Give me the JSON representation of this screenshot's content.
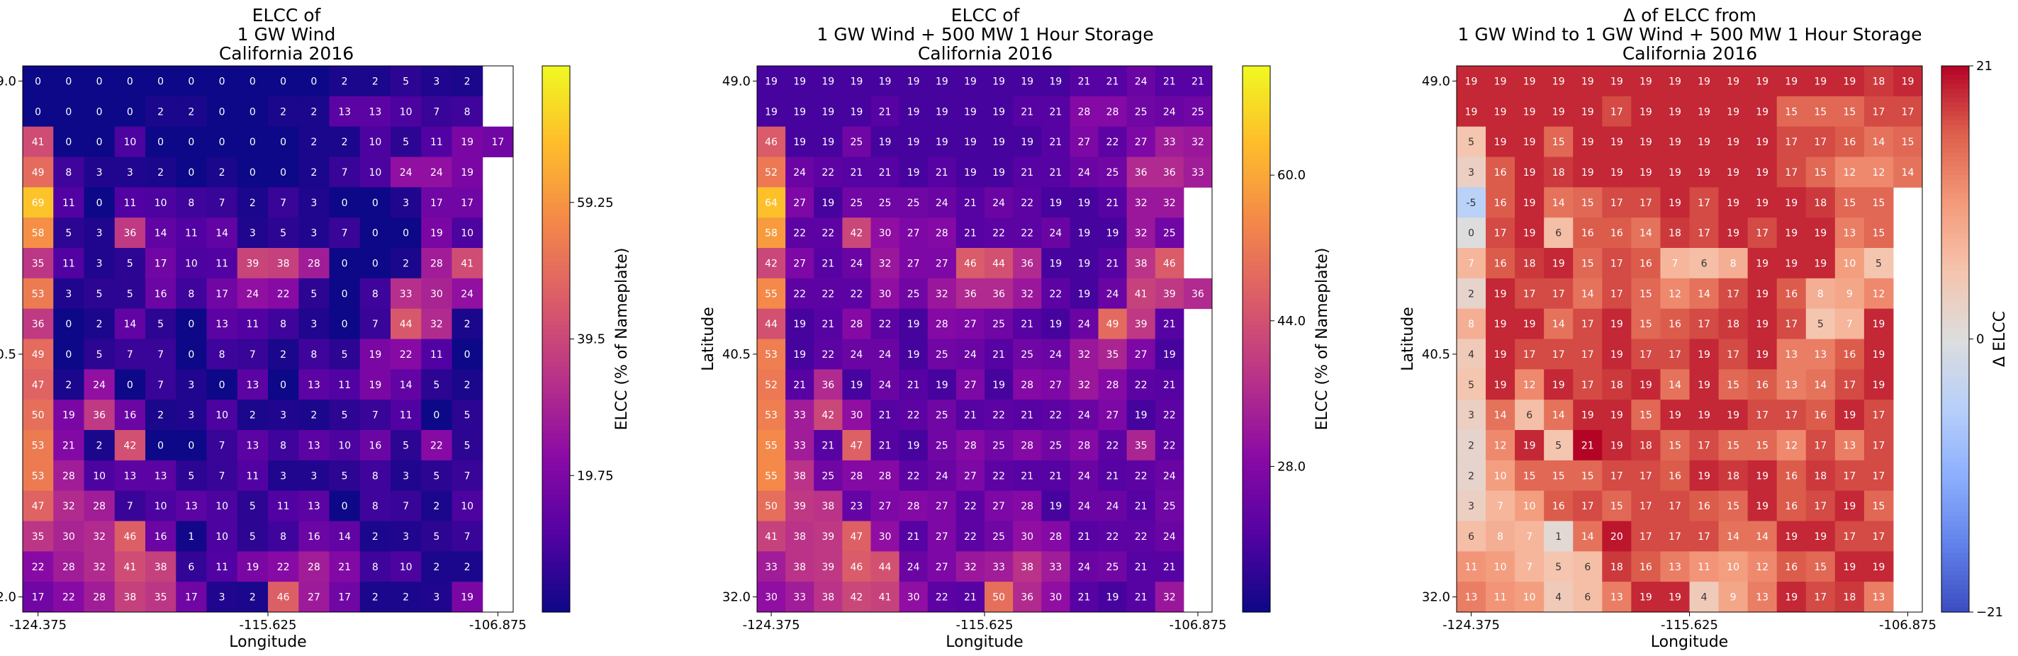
{
  "chart_data": [
    {
      "type": "heatmap",
      "title_lines": [
        "ELCC of",
        "1 GW Wind",
        "California 2016"
      ],
      "xlabel": "Longitude",
      "ylabel": "Latitude",
      "x_tick_labels": [
        "-124.375",
        "-115.625",
        "-106.875"
      ],
      "y_tick_labels": [
        "49.0",
        "40.5",
        "32.0"
      ],
      "colorbar_label": "ELCC (% of Nameplate)",
      "colorbar_ticks": [
        19.75,
        39.5,
        59.25
      ],
      "colorbar_tick_labels": [
        "19.75",
        "39.5",
        "59.25"
      ],
      "colormap": "plasma",
      "vmin": 0,
      "vmax": 79,
      "values": [
        [
          0,
          0,
          0,
          0,
          0,
          0,
          0,
          0,
          0,
          0,
          2,
          2,
          5,
          3,
          2
        ],
        [
          0,
          0,
          0,
          0,
          2,
          2,
          0,
          0,
          2,
          2,
          13,
          13,
          10,
          7,
          8
        ],
        [
          41,
          0,
          0,
          10,
          0,
          0,
          0,
          0,
          0,
          2,
          2,
          10,
          5,
          11,
          19,
          17
        ],
        [
          49,
          8,
          3,
          3,
          2,
          0,
          2,
          0,
          0,
          2,
          7,
          10,
          24,
          24,
          19
        ],
        [
          69,
          11,
          0,
          11,
          10,
          8,
          7,
          2,
          7,
          3,
          0,
          0,
          3,
          17,
          17
        ],
        [
          58,
          5,
          3,
          36,
          14,
          11,
          14,
          3,
          5,
          3,
          7,
          0,
          0,
          19,
          10
        ],
        [
          35,
          11,
          3,
          5,
          17,
          10,
          11,
          39,
          38,
          28,
          0,
          0,
          2,
          28,
          41
        ],
        [
          53,
          3,
          5,
          5,
          16,
          8,
          17,
          24,
          22,
          5,
          0,
          8,
          33,
          30,
          24
        ],
        [
          36,
          0,
          2,
          14,
          5,
          0,
          13,
          11,
          8,
          3,
          0,
          7,
          44,
          32,
          2
        ],
        [
          49,
          0,
          5,
          7,
          7,
          0,
          8,
          7,
          2,
          8,
          5,
          19,
          22,
          11,
          0
        ],
        [
          47,
          2,
          24,
          0,
          7,
          3,
          0,
          13,
          0,
          13,
          11,
          19,
          14,
          5,
          2
        ],
        [
          50,
          19,
          36,
          16,
          2,
          3,
          10,
          2,
          3,
          2,
          5,
          7,
          11,
          0,
          5
        ],
        [
          53,
          21,
          2,
          42,
          0,
          0,
          7,
          13,
          8,
          13,
          10,
          16,
          5,
          22,
          5
        ],
        [
          53,
          28,
          10,
          13,
          13,
          5,
          7,
          11,
          3,
          3,
          5,
          8,
          3,
          5,
          7
        ],
        [
          47,
          32,
          28,
          7,
          10,
          13,
          10,
          5,
          11,
          13,
          0,
          8,
          7,
          2,
          10
        ],
        [
          35,
          30,
          32,
          46,
          16,
          1,
          10,
          5,
          8,
          16,
          14,
          2,
          3,
          5,
          7
        ],
        [
          22,
          28,
          32,
          41,
          38,
          6,
          11,
          19,
          22,
          28,
          21,
          8,
          10,
          2,
          2
        ],
        [
          17,
          22,
          28,
          38,
          35,
          17,
          3,
          2,
          46,
          27,
          17,
          2,
          2,
          3,
          19
        ]
      ]
    },
    {
      "type": "heatmap",
      "title_lines": [
        "ELCC of",
        "1 GW Wind + 500 MW 1 Hour Storage",
        "California 2016"
      ],
      "xlabel": "Longitude",
      "ylabel": "Latitude",
      "x_tick_labels": [
        "-124.375",
        "-115.625",
        "-106.875"
      ],
      "y_tick_labels": [
        "49.0",
        "40.5",
        "32.0"
      ],
      "colorbar_label": "ELCC (% of Nameplate)",
      "colorbar_ticks": [
        28.0,
        44.0,
        60.0
      ],
      "colorbar_tick_labels": [
        "28.0",
        "44.0",
        "60.0"
      ],
      "colormap": "plasma",
      "vmin": 12,
      "vmax": 72,
      "values": [
        [
          19,
          19,
          19,
          19,
          19,
          19,
          19,
          19,
          19,
          19,
          19,
          21,
          21,
          24,
          21,
          21
        ],
        [
          19,
          19,
          19,
          19,
          21,
          19,
          19,
          19,
          19,
          21,
          21,
          28,
          28,
          25,
          24,
          25
        ],
        [
          46,
          19,
          19,
          25,
          19,
          19,
          19,
          19,
          19,
          19,
          21,
          27,
          22,
          27,
          33,
          32
        ],
        [
          52,
          24,
          22,
          21,
          21,
          19,
          21,
          19,
          19,
          21,
          21,
          24,
          25,
          36,
          36,
          33
        ],
        [
          64,
          27,
          19,
          25,
          25,
          25,
          24,
          21,
          24,
          22,
          19,
          19,
          21,
          32,
          32
        ],
        [
          58,
          22,
          22,
          42,
          30,
          27,
          28,
          21,
          22,
          22,
          24,
          19,
          19,
          32,
          25
        ],
        [
          42,
          27,
          21,
          24,
          32,
          27,
          27,
          46,
          44,
          36,
          19,
          19,
          21,
          38,
          46
        ],
        [
          55,
          22,
          22,
          22,
          30,
          25,
          32,
          36,
          36,
          32,
          22,
          19,
          24,
          41,
          39,
          36
        ],
        [
          44,
          19,
          21,
          28,
          22,
          19,
          28,
          27,
          25,
          21,
          19,
          24,
          49,
          39,
          21
        ],
        [
          53,
          19,
          22,
          24,
          24,
          19,
          25,
          24,
          21,
          25,
          24,
          32,
          35,
          27,
          19
        ],
        [
          52,
          21,
          36,
          19,
          24,
          21,
          19,
          27,
          19,
          28,
          27,
          32,
          28,
          22,
          21
        ],
        [
          53,
          33,
          42,
          30,
          21,
          22,
          25,
          21,
          22,
          21,
          22,
          24,
          27,
          19,
          22
        ],
        [
          55,
          33,
          21,
          47,
          21,
          19,
          25,
          28,
          25,
          28,
          25,
          28,
          22,
          35,
          22
        ],
        [
          55,
          38,
          25,
          28,
          28,
          22,
          24,
          27,
          22,
          21,
          21,
          24,
          21,
          22,
          24
        ],
        [
          50,
          39,
          38,
          23,
          27,
          28,
          27,
          22,
          27,
          28,
          19,
          24,
          24,
          21,
          25
        ],
        [
          41,
          38,
          39,
          47,
          30,
          21,
          27,
          22,
          25,
          30,
          28,
          21,
          22,
          22,
          24
        ],
        [
          33,
          38,
          39,
          46,
          44,
          24,
          27,
          32,
          33,
          38,
          33,
          24,
          25,
          21,
          21
        ],
        [
          30,
          33,
          38,
          42,
          41,
          30,
          22,
          21,
          50,
          36,
          30,
          21,
          19,
          21,
          32
        ]
      ]
    },
    {
      "type": "heatmap",
      "title_lines": [
        "Δ of ELCC from",
        "1 GW Wind to 1 GW Wind + 500 MW 1 Hour Storage",
        "California 2016"
      ],
      "xlabel": "Longitude",
      "ylabel": "Latitude",
      "x_tick_labels": [
        "-124.375",
        "-115.625",
        "-106.875"
      ],
      "y_tick_labels": [
        "49.0",
        "40.5",
        "32.0"
      ],
      "colorbar_label": "Δ ELCC",
      "colorbar_ticks": [
        -21,
        0,
        21
      ],
      "colorbar_tick_labels": [
        "−21",
        "0",
        "21"
      ],
      "colormap": "coolwarm",
      "vmin": -21,
      "vmax": 21,
      "values": [
        [
          19,
          19,
          19,
          19,
          19,
          19,
          19,
          19,
          19,
          19,
          19,
          19,
          19,
          19,
          18,
          19
        ],
        [
          19,
          19,
          19,
          19,
          19,
          17,
          19,
          19,
          19,
          19,
          19,
          15,
          15,
          15,
          17,
          17
        ],
        [
          5,
          19,
          19,
          15,
          19,
          19,
          19,
          19,
          19,
          19,
          19,
          17,
          17,
          16,
          14,
          15
        ],
        [
          3,
          16,
          19,
          18,
          19,
          19,
          19,
          19,
          19,
          19,
          19,
          17,
          15,
          12,
          12,
          14
        ],
        [
          -5,
          16,
          19,
          14,
          15,
          17,
          17,
          19,
          17,
          19,
          19,
          19,
          18,
          15,
          15
        ],
        [
          0,
          17,
          19,
          6,
          16,
          16,
          14,
          18,
          17,
          19,
          17,
          19,
          19,
          13,
          15
        ],
        [
          7,
          16,
          18,
          19,
          15,
          17,
          16,
          7,
          6,
          8,
          19,
          19,
          19,
          10,
          5
        ],
        [
          2,
          19,
          17,
          17,
          14,
          17,
          15,
          12,
          14,
          17,
          19,
          16,
          8,
          9,
          12
        ],
        [
          8,
          19,
          19,
          14,
          17,
          19,
          15,
          16,
          17,
          18,
          19,
          17,
          5,
          7,
          19
        ],
        [
          4,
          19,
          17,
          17,
          17,
          19,
          17,
          17,
          19,
          17,
          19,
          13,
          13,
          16,
          19
        ],
        [
          5,
          19,
          12,
          19,
          17,
          18,
          19,
          14,
          19,
          15,
          16,
          13,
          14,
          17,
          19
        ],
        [
          3,
          14,
          6,
          14,
          19,
          19,
          15,
          19,
          19,
          19,
          17,
          17,
          16,
          19,
          17
        ],
        [
          2,
          12,
          19,
          5,
          21,
          19,
          18,
          15,
          17,
          15,
          15,
          12,
          17,
          13,
          17
        ],
        [
          2,
          10,
          15,
          15,
          15,
          17,
          17,
          16,
          19,
          18,
          19,
          16,
          18,
          17,
          17
        ],
        [
          3,
          7,
          10,
          16,
          17,
          15,
          17,
          17,
          16,
          15,
          19,
          16,
          17,
          19,
          15
        ],
        [
          6,
          8,
          7,
          1,
          14,
          20,
          17,
          17,
          17,
          14,
          14,
          19,
          19,
          17,
          17
        ],
        [
          11,
          10,
          7,
          5,
          6,
          18,
          16,
          13,
          11,
          10,
          12,
          16,
          15,
          19,
          19
        ],
        [
          13,
          11,
          10,
          4,
          6,
          13,
          19,
          19,
          4,
          9,
          13,
          19,
          17,
          18,
          13
        ]
      ]
    }
  ]
}
